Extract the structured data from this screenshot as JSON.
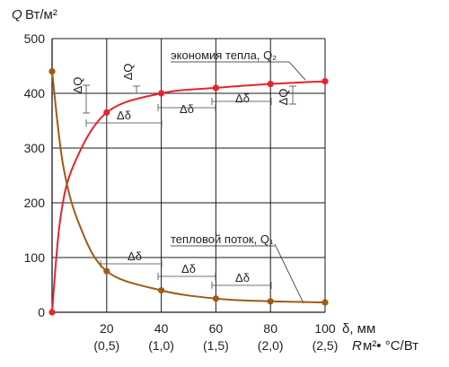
{
  "chart_data": {
    "type": "line",
    "y_axis": {
      "symbol": "Q",
      "unit": "Вт/м²",
      "ylim": [
        0,
        500
      ],
      "ticks": [
        0,
        100,
        200,
        300,
        400,
        500
      ]
    },
    "x_axis": {
      "ticks": [
        20,
        40,
        60,
        80,
        100
      ],
      "secondary_ticks": [
        "(0,5)",
        "(1,0)",
        "(1,5)",
        "(2,0)",
        "(2,5)"
      ],
      "xlim": [
        0,
        100
      ],
      "primary_label": "δ, мм",
      "secondary_label_symbol": "R",
      "secondary_label_unit": "м²• °С/Вт"
    },
    "grid": true,
    "series": [
      {
        "name": "экономия тепла, Q₂",
        "color": "#e8232d",
        "x": [
          0,
          20,
          40,
          60,
          80,
          100
        ],
        "y": [
          0,
          365,
          400,
          410,
          417,
          422
        ]
      },
      {
        "name": "тепловой поток, Q₁",
        "color": "#a25a12",
        "x": [
          0,
          20,
          40,
          60,
          80,
          100
        ],
        "y": [
          440,
          75,
          40,
          25,
          20,
          18
        ]
      }
    ],
    "annotations": {
      "delta_q": "ΔQ",
      "delta_delta": "Δδ"
    }
  }
}
